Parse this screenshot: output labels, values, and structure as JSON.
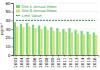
{
  "chart_data": {
    "type": "bar",
    "ylabel": "μg/m³",
    "categories": [
      "2003",
      "2004",
      "2005",
      "2006",
      "2007",
      "2008",
      "2009",
      "2010",
      "2011",
      "2012",
      "2013",
      "2014",
      "2015",
      "2016"
    ],
    "series": [
      {
        "name": "Site A Annual Mean",
        "color": "#7fd37f",
        "type": "bar",
        "values": [
          38,
          36,
          37,
          35,
          34,
          33,
          32,
          31,
          30,
          31,
          29,
          28,
          27,
          26
        ]
      },
      {
        "name": "Site B Annual Mean",
        "color": "#c8e66e",
        "type": "bar",
        "values": [
          33,
          32,
          33,
          31,
          30,
          29,
          28,
          27,
          27,
          26,
          25,
          24,
          24,
          23
        ]
      },
      {
        "name": "Limit Value",
        "color": "#2e8b57",
        "type": "line",
        "line_style": "dashed",
        "values": [
          40,
          40,
          40,
          40,
          40,
          40,
          40,
          40,
          40,
          40,
          40,
          40,
          40,
          40
        ]
      }
    ],
    "ylim": [
      0,
      60
    ],
    "yticks": [
      0,
      10,
      20,
      30,
      40,
      50,
      60
    ],
    "grid": true,
    "legend": "upper left"
  }
}
